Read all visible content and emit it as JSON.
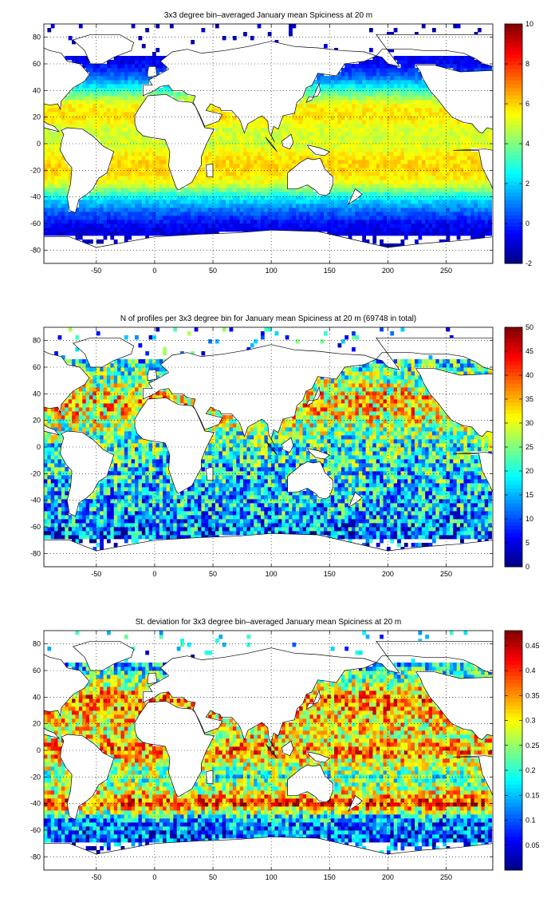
{
  "chart_data": [
    {
      "type": "heatmap",
      "title": "3x3 degree bin–averaged January mean Spiciness at 20 m",
      "xlabel": "",
      "ylabel": "",
      "xlim": [
        -95,
        290
      ],
      "ylim": [
        -90,
        90
      ],
      "x_ticks": [
        "-50",
        "0",
        "50",
        "100",
        "150",
        "200",
        "250"
      ],
      "y_ticks": [
        "80",
        "60",
        "40",
        "20",
        "0",
        "-20",
        "-40",
        "-60",
        "-80"
      ],
      "colorbar": {
        "min": -2,
        "max": 10,
        "ticks": [
          "10",
          "8",
          "6",
          "4",
          "2",
          "0",
          "-2"
        ]
      },
      "grid": true,
      "colormap": "jet",
      "bin_size_deg": 3,
      "field": "spiciness",
      "zonal_profile": {
        "lat": [
          -80,
          -70,
          -60,
          -50,
          -40,
          -30,
          -20,
          -10,
          0,
          10,
          20,
          30,
          40,
          50,
          60,
          70
        ],
        "value": [
          -1.5,
          -1.0,
          -0.5,
          0.8,
          2.5,
          5.2,
          6.0,
          5.8,
          5.0,
          5.0,
          5.8,
          5.5,
          3.2,
          0.8,
          -0.5,
          -1.2
        ]
      }
    },
    {
      "type": "heatmap",
      "title": "N of profiles per 3x3 degree bin for January mean Spiciness at 20 m (69748 in total)",
      "xlabel": "",
      "ylabel": "",
      "xlim": [
        -95,
        290
      ],
      "ylim": [
        -90,
        90
      ],
      "x_ticks": [
        "-50",
        "0",
        "50",
        "100",
        "150",
        "200",
        "250"
      ],
      "y_ticks": [
        "80",
        "60",
        "40",
        "20",
        "0",
        "-20",
        "-40",
        "-60",
        "-80"
      ],
      "colorbar": {
        "min": 0,
        "max": 50,
        "ticks": [
          "50",
          "45",
          "40",
          "35",
          "30",
          "25",
          "20",
          "15",
          "10",
          "5",
          "0"
        ]
      },
      "grid": true,
      "colormap": "jet",
      "bin_size_deg": 3,
      "field": "count",
      "total_profiles": 69748,
      "zonal_profile": {
        "lat": [
          -80,
          -70,
          -60,
          -50,
          -40,
          -30,
          -20,
          -10,
          0,
          10,
          20,
          30,
          40,
          50,
          60,
          70
        ],
        "value": [
          6,
          8,
          12,
          14,
          15,
          16,
          17,
          18,
          20,
          22,
          28,
          32,
          30,
          24,
          20,
          14
        ]
      }
    },
    {
      "type": "heatmap",
      "title": "St. deviation for 3x3 degree bin–averaged January mean Spiciness at 20 m",
      "xlabel": "",
      "ylabel": "",
      "xlim": [
        -95,
        290
      ],
      "ylim": [
        -90,
        90
      ],
      "x_ticks": [
        "-50",
        "0",
        "50",
        "100",
        "150",
        "200",
        "250"
      ],
      "y_ticks": [
        "80",
        "60",
        "40",
        "20",
        "0",
        "-20",
        "-40",
        "-60",
        "-80"
      ],
      "colorbar": {
        "min": 0,
        "max": 0.48,
        "ticks": [
          "0.45",
          "0.4",
          "0.35",
          "0.3",
          "0.25",
          "0.2",
          "0.15",
          "0.1",
          "0.05"
        ]
      },
      "grid": true,
      "colormap": "jet",
      "bin_size_deg": 3,
      "field": "std",
      "zonal_profile": {
        "lat": [
          -80,
          -70,
          -60,
          -50,
          -40,
          -30,
          -20,
          -10,
          0,
          10,
          20,
          30,
          40,
          50,
          60,
          70
        ],
        "value": [
          0.08,
          0.1,
          0.1,
          0.16,
          0.4,
          0.28,
          0.22,
          0.28,
          0.36,
          0.3,
          0.3,
          0.34,
          0.36,
          0.26,
          0.18,
          0.12
        ]
      }
    }
  ]
}
